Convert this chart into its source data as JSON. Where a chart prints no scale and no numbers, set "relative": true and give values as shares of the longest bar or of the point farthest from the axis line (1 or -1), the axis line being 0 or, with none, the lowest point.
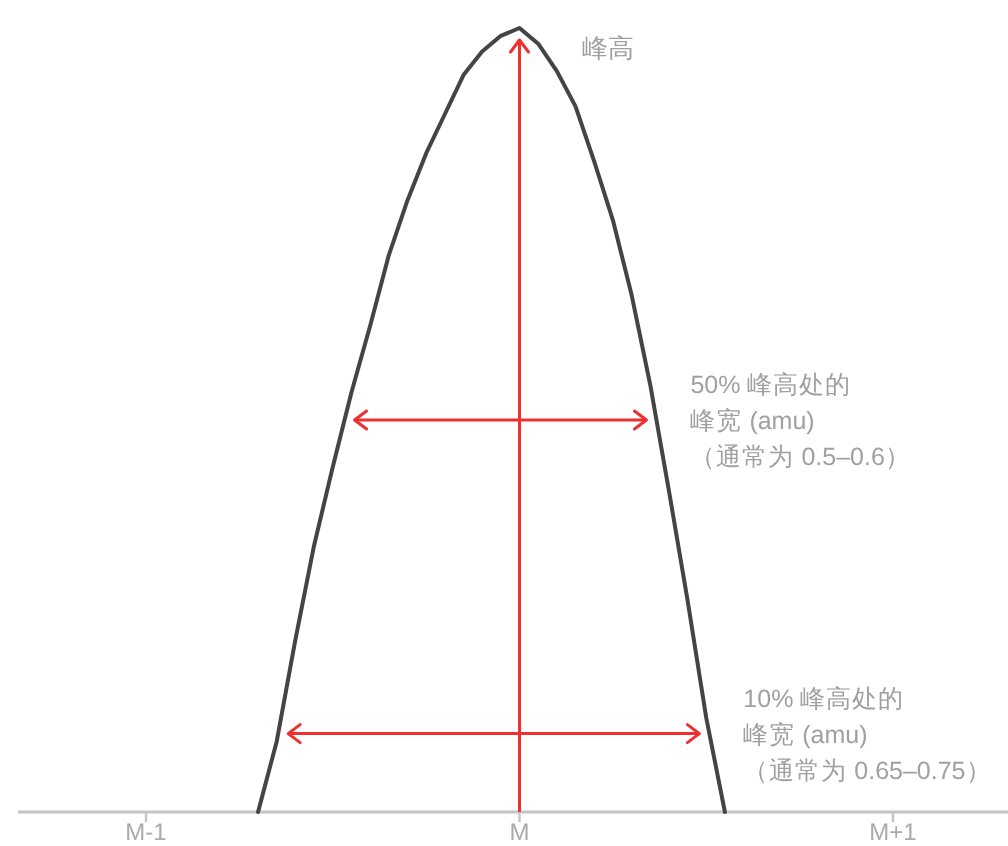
{
  "chart_data": {
    "type": "line",
    "relative": true,
    "color": "#444444",
    "categories": [
      "M-1",
      null,
      null,
      null,
      null,
      null,
      null,
      null,
      null,
      null,
      null,
      null,
      null,
      null,
      null,
      null,
      null,
      null,
      null,
      null,
      "M",
      null,
      null,
      null,
      null,
      null,
      null,
      null,
      null,
      null,
      null,
      null,
      null,
      null,
      null,
      null,
      null,
      null,
      null,
      null,
      "M+1"
    ],
    "values": [
      null,
      null,
      null,
      null,
      null,
      null,
      0,
      0.09,
      0.22,
      0.34,
      0.44,
      0.535,
      0.62,
      0.71,
      0.78,
      0.84,
      0.89,
      0.94,
      0.97,
      0.99,
      1,
      0.98,
      0.945,
      0.9,
      0.83,
      0.755,
      0.66,
      0.545,
      0.41,
      0.27,
      0.12,
      0,
      null,
      null,
      null,
      null,
      null,
      null,
      null,
      null,
      null
    ],
    "annotations": [
      {
        "text": "峰高",
        "x": "M",
        "y": 1
      }
    ],
    "ref_lines": [
      {
        "axis": "y",
        "value": 0.5,
        "label": "50% 峰高处的峰宽 (amu)（通常为 0.5–0.6）",
        "color": "#ee3030"
      },
      {
        "axis": "y",
        "value": 0.1,
        "label": "10% 峰高处的峰宽 (amu)（通常为 0.65–0.75）",
        "color": "#ee3030"
      }
    ]
  }
}
